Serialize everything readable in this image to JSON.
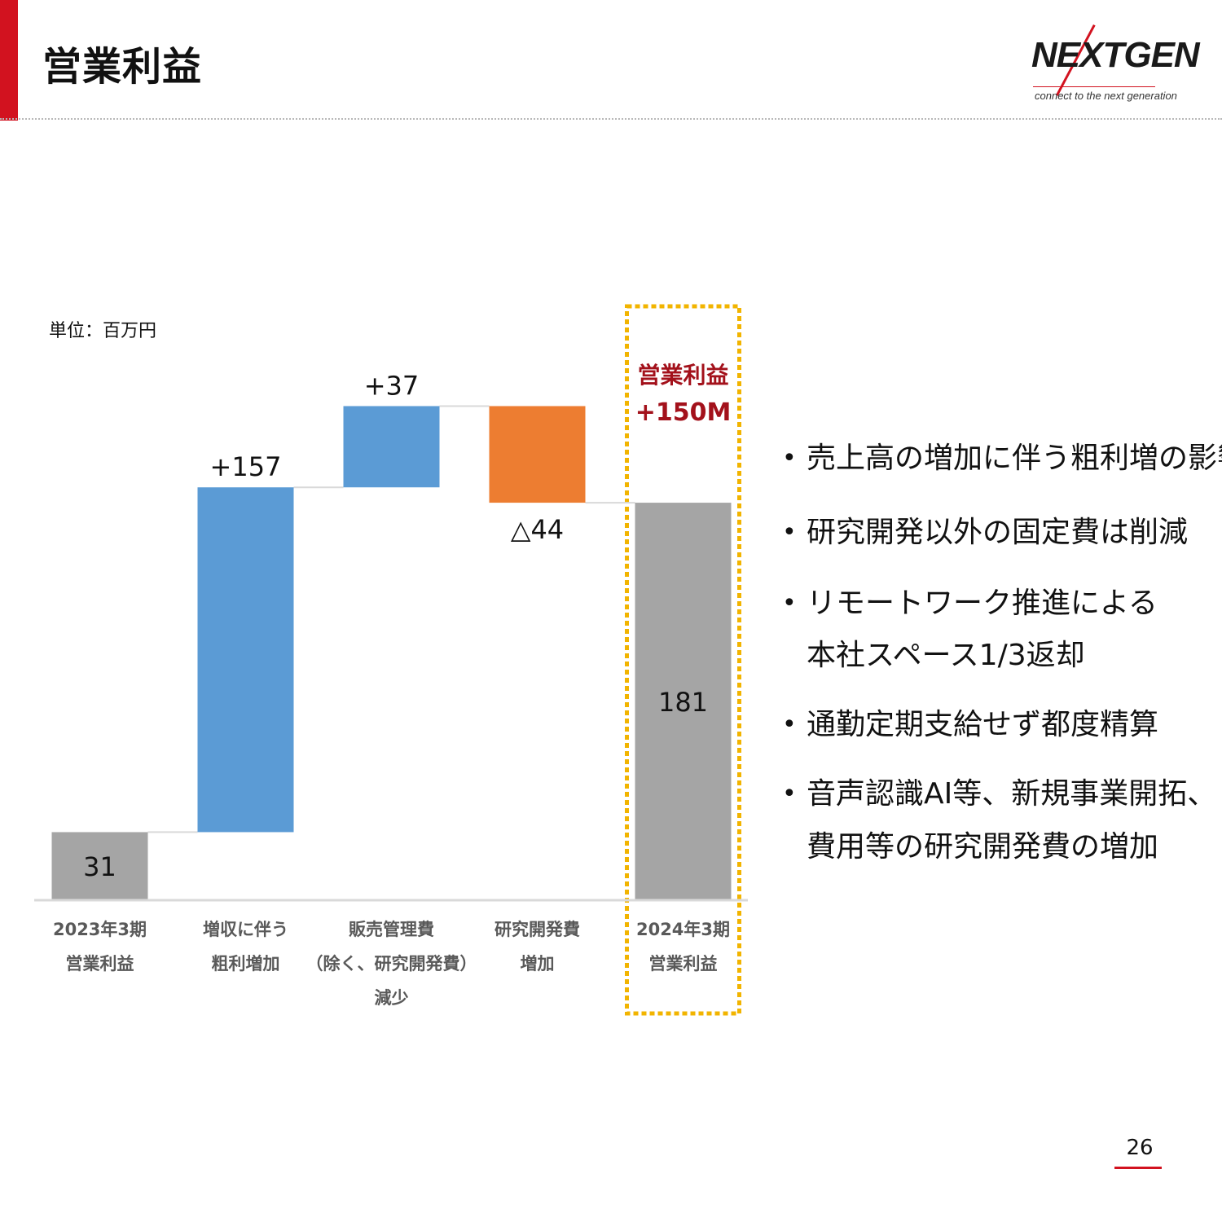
{
  "header": {
    "title": "営業利益",
    "logo_text": "NEXTGEN",
    "logo_tagline": "connect to the next generation",
    "accent_color": "#d2121f"
  },
  "unit_label": "単位：百万円",
  "highlight": {
    "label_line1": "営業利益",
    "label_line2": "+150M",
    "label_color": "#a3111b",
    "frame_color": "#f2b400"
  },
  "chart_data": {
    "type": "bar",
    "subtype": "waterfall",
    "categories": [
      [
        "2023年3期",
        "営業利益"
      ],
      [
        "増収に伴う",
        "粗利増加"
      ],
      [
        "販売管理費",
        "（除く、研究開発費）",
        "減少"
      ],
      [
        "研究開発費",
        "増加"
      ],
      [
        "2024年3期",
        "営業利益"
      ]
    ],
    "values": [
      31,
      157,
      37,
      -44,
      181
    ],
    "kinds": [
      "total",
      "increase",
      "increase",
      "decrease",
      "total"
    ],
    "value_labels": [
      "31",
      "+157",
      "+37",
      "△44",
      "181"
    ],
    "colors": {
      "total": "#a5a5a5",
      "increase": "#5b9bd5",
      "decrease": "#ed7d31"
    },
    "ylim": [
      0,
      230
    ],
    "grid": false,
    "legend": "none"
  },
  "bullets": [
    [
      "売上高の増加に伴う粗利増の影響大"
    ],
    [
      "研究開発以外の固定費は削減"
    ],
    [
      "リモートワーク推進による",
      "本社スペース1/3返却"
    ],
    [
      "通勤定期支給せず都度精算"
    ],
    [
      "音声認識AI等、新規事業開拓、",
      "費用等の研究開発費の増加"
    ]
  ],
  "page_number": "26"
}
